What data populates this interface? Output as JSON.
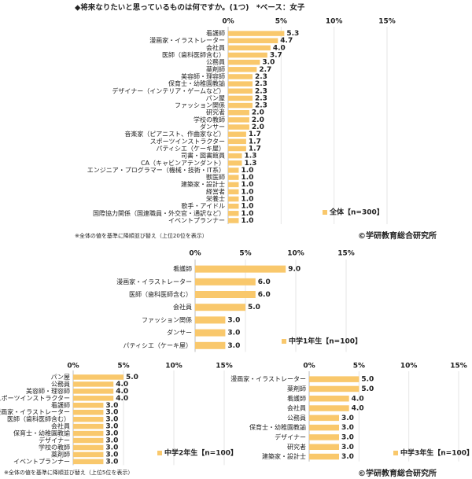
{
  "chart_data": [
    {
      "type": "bar",
      "orientation": "horizontal",
      "title": "◆将来なりたいと思っているものは何ですか。(1つ)　*ベース：女子",
      "categories": [
        "看護師",
        "漫画家・イラストレーター",
        "会社員",
        "医師（歯科医師含む）",
        "公務員",
        "薬剤師",
        "美容師・理容師",
        "保育士・幼稚園教諭",
        "デザイナー（インテリア・ゲームなど）",
        "パン屋",
        "ファッション関係",
        "研究者",
        "学校の教師",
        "ダンサー",
        "音楽家（ピアニスト、作曲家など）",
        "スポーツインストラクター",
        "パティシエ（ケーキ屋）",
        "司書・図書館員",
        "CA（キャビンアテンダント）",
        "エンジニア・プログラマー（機械・技術・IT系）",
        "獣医師",
        "建築家・設計士",
        "経営者",
        "栄養士",
        "歌手・アイドル",
        "国際協力関係（国連職員・外交官・通訳など）",
        "イベントプランナー"
      ],
      "series": [
        {
          "name": "全体【n=300】",
          "color": "#f9c86c",
          "values": [
            5.3,
            4.7,
            4.0,
            3.7,
            3.0,
            2.7,
            2.3,
            2.3,
            2.3,
            2.3,
            2.3,
            2.0,
            2.0,
            2.0,
            1.7,
            1.7,
            1.7,
            1.3,
            1.3,
            1.0,
            1.0,
            1.0,
            1.0,
            1.0,
            1.0,
            1.0,
            1.0
          ],
          "value_labels": [
            "5.3",
            "4.7",
            "4.0",
            "3.7",
            "3.0",
            "2.7",
            "2.3",
            "2.3",
            "2.3",
            "2.3",
            "2.3",
            "2.0",
            "2.0",
            "2.0",
            "1.7",
            "1.7",
            "1.7",
            "1.3",
            "1.3",
            "1.0",
            "1.0",
            "1.0",
            "1.0",
            "1.0",
            "1.0",
            "1.0",
            "1.0"
          ]
        }
      ],
      "xlim": [
        0,
        15
      ],
      "xticks": [
        {
          "value": 0,
          "label": "0%"
        },
        {
          "value": 5,
          "label": "5%"
        },
        {
          "value": 10,
          "label": "10%"
        },
        {
          "value": 15,
          "label": "15%"
        }
      ],
      "grid": true,
      "note": "※全体の値を基準に降順並び替え（上位20位を表示）",
      "source": "©学研教育総合研究所"
    },
    {
      "type": "bar",
      "orientation": "horizontal",
      "categories": [
        "看護師",
        "漫画家・イラストレーター",
        "医師（歯科医師含む）",
        "会社員",
        "ファッション関係",
        "ダンサー",
        "パティシエ（ケーキ屋）"
      ],
      "series": [
        {
          "name": "中学1年生【n=100】",
          "color": "#f9c86c",
          "values": [
            9.0,
            6.0,
            6.0,
            5.0,
            3.0,
            3.0,
            3.0
          ],
          "value_labels": [
            "9.0",
            "6.0",
            "6.0",
            "5.0",
            "3.0",
            "3.0",
            "3.0"
          ]
        }
      ],
      "xlim": [
        0,
        15
      ],
      "xticks": [
        {
          "value": 0,
          "label": "0%"
        },
        {
          "value": 5,
          "label": "5%"
        },
        {
          "value": 10,
          "label": "10%"
        },
        {
          "value": 15,
          "label": "15%"
        }
      ],
      "grid": true
    },
    {
      "type": "bar",
      "orientation": "horizontal",
      "categories": [
        "パン屋",
        "公務員",
        "美容師・理容師",
        "スポーツインストラクター",
        "看護師",
        "漫画家・イラストレーター",
        "医師（歯科医師含む）",
        "会社員",
        "保育士・幼稚園教諭",
        "デザイナー",
        "学校の教師",
        "薬剤師",
        "イベントプランナー"
      ],
      "series": [
        {
          "name": "中学2年生【n=100】",
          "color": "#f9c86c",
          "values": [
            5.0,
            4.0,
            4.0,
            4.0,
            3.0,
            3.0,
            3.0,
            3.0,
            3.0,
            3.0,
            3.0,
            3.0,
            3.0
          ],
          "value_labels": [
            "5.0",
            "4.0",
            "4.0",
            "4.0",
            "3.0",
            "3.0",
            "3.0",
            "3.0",
            "3.0",
            "3.0",
            "3.0",
            "3.0",
            "3.0"
          ]
        }
      ],
      "xlim": [
        0,
        15
      ],
      "xticks": [
        {
          "value": 0,
          "label": "0%"
        },
        {
          "value": 5,
          "label": "5%"
        },
        {
          "value": 10,
          "label": "10%"
        },
        {
          "value": 15,
          "label": "15%"
        }
      ],
      "grid": true,
      "note": "※全体の値を基準に降順並び替え（上位5位を表示）"
    },
    {
      "type": "bar",
      "orientation": "horizontal",
      "categories": [
        "漫画家・イラストレーター",
        "薬剤師",
        "看護師",
        "会社員",
        "公務員",
        "保育士・幼稚園教諭",
        "デザイナー",
        "研究者",
        "建築家・設計士"
      ],
      "series": [
        {
          "name": "中学3年生【n=100】",
          "color": "#f9c86c",
          "values": [
            5.0,
            5.0,
            4.0,
            4.0,
            3.0,
            3.0,
            3.0,
            3.0,
            3.0
          ],
          "value_labels": [
            "5.0",
            "5.0",
            "4.0",
            "4.0",
            "3.0",
            "3.0",
            "3.0",
            "3.0",
            "3.0"
          ]
        }
      ],
      "xlim": [
        0,
        15
      ],
      "xticks": [
        {
          "value": 0,
          "label": "0%"
        },
        {
          "value": 5,
          "label": "5%"
        },
        {
          "value": 10,
          "label": "10%"
        },
        {
          "value": 15,
          "label": "15%"
        }
      ],
      "grid": true,
      "source": "©学研教育総合研究所"
    }
  ]
}
